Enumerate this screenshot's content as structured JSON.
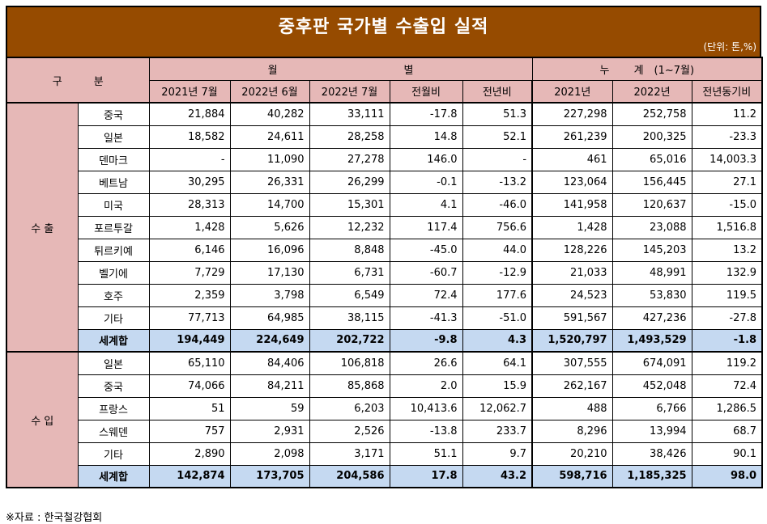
{
  "title": "중후판 국가별 수출입 실적",
  "unit": "(단위: 톤,%)",
  "header": {
    "category": "구　　　분",
    "monthly_group": "월　　　　　　　　　　　　별",
    "cumulative_group": "누　　 계　(1~7월)",
    "columns": [
      "2021년 7월",
      "2022년 6월",
      "2022년 7월",
      "전월비",
      "전년비",
      "2021년",
      "2022년",
      "전년동기비"
    ]
  },
  "sections": [
    {
      "label": "수 출",
      "rows": [
        {
          "name": "중국",
          "values": [
            "21,884",
            "40,282",
            "33,111",
            "-17.8",
            "51.3",
            "227,298",
            "252,758",
            "11.2"
          ]
        },
        {
          "name": "일본",
          "values": [
            "18,582",
            "24,611",
            "28,258",
            "14.8",
            "52.1",
            "261,239",
            "200,325",
            "-23.3"
          ]
        },
        {
          "name": "덴마크",
          "values": [
            "-",
            "11,090",
            "27,278",
            "146.0",
            "-",
            "461",
            "65,016",
            "14,003.3"
          ]
        },
        {
          "name": "베트남",
          "values": [
            "30,295",
            "26,331",
            "26,299",
            "-0.1",
            "-13.2",
            "123,064",
            "156,445",
            "27.1"
          ]
        },
        {
          "name": "미국",
          "values": [
            "28,313",
            "14,700",
            "15,301",
            "4.1",
            "-46.0",
            "141,958",
            "120,637",
            "-15.0"
          ]
        },
        {
          "name": "포르투갈",
          "values": [
            "1,428",
            "5,626",
            "12,232",
            "117.4",
            "756.6",
            "1,428",
            "23,088",
            "1,516.8"
          ]
        },
        {
          "name": "튀르키예",
          "values": [
            "6,146",
            "16,096",
            "8,848",
            "-45.0",
            "44.0",
            "128,226",
            "145,203",
            "13.2"
          ]
        },
        {
          "name": "벨기에",
          "values": [
            "7,729",
            "17,130",
            "6,731",
            "-60.7",
            "-12.9",
            "21,033",
            "48,991",
            "132.9"
          ]
        },
        {
          "name": "호주",
          "values": [
            "2,359",
            "3,798",
            "6,549",
            "72.4",
            "177.6",
            "24,523",
            "53,830",
            "119.5"
          ]
        },
        {
          "name": "기타",
          "values": [
            "77,713",
            "64,985",
            "38,115",
            "-41.3",
            "-51.0",
            "591,567",
            "427,236",
            "-27.8"
          ]
        },
        {
          "name": "세계합",
          "total": true,
          "values": [
            "194,449",
            "224,649",
            "202,722",
            "-9.8",
            "4.3",
            "1,520,797",
            "1,493,529",
            "-1.8"
          ]
        }
      ]
    },
    {
      "label": "수 입",
      "rows": [
        {
          "name": "일본",
          "values": [
            "65,110",
            "84,406",
            "106,818",
            "26.6",
            "64.1",
            "307,555",
            "674,091",
            "119.2"
          ]
        },
        {
          "name": "중국",
          "values": [
            "74,066",
            "84,211",
            "85,868",
            "2.0",
            "15.9",
            "262,167",
            "452,048",
            "72.4"
          ]
        },
        {
          "name": "프랑스",
          "values": [
            "51",
            "59",
            "6,203",
            "10,413.6",
            "12,062.7",
            "488",
            "6,766",
            "1,286.5"
          ]
        },
        {
          "name": "스웨덴",
          "values": [
            "757",
            "2,931",
            "2,526",
            "-13.8",
            "233.7",
            "8,296",
            "13,994",
            "68.7"
          ]
        },
        {
          "name": "기타",
          "values": [
            "2,890",
            "2,098",
            "3,171",
            "51.1",
            "9.7",
            "20,210",
            "38,426",
            "90.1"
          ]
        },
        {
          "name": "세계합",
          "total": true,
          "values": [
            "142,874",
            "173,705",
            "204,586",
            "17.8",
            "43.2",
            "598,716",
            "1,185,325",
            "98.0"
          ]
        }
      ]
    }
  ],
  "footer": "※자료 : 한국철강협회"
}
